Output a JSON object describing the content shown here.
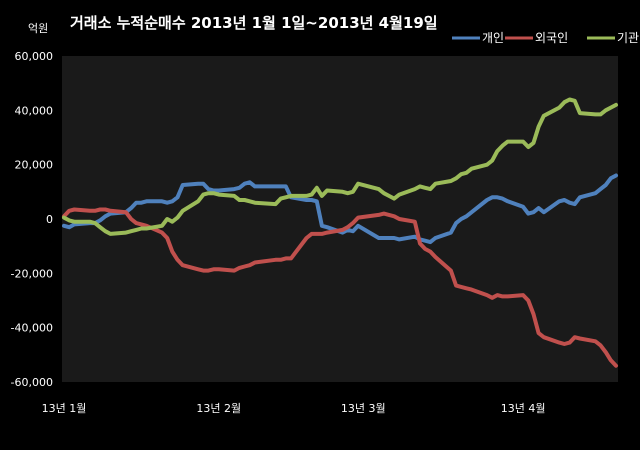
{
  "chart_data": {
    "type": "line",
    "title": "거래소  누적순매수 2013년 1월 1일~2013년 4월19일",
    "ylabel": "억원",
    "xlabel": "",
    "ylim": [
      -60000,
      60000
    ],
    "yticks": [
      -60000,
      -40000,
      -20000,
      0,
      20000,
      40000,
      60000
    ],
    "ytick_labels": [
      "-60,000",
      "-40,000",
      "-20,000",
      "0",
      "20,000",
      "40,000",
      "60,000"
    ],
    "x_range": [
      "2013-01-02",
      "2013-04-19"
    ],
    "xticks": [
      {
        "date": "2013-01-02",
        "label": "13년 1월"
      },
      {
        "date": "2013-02-01",
        "label": "13년 2월"
      },
      {
        "date": "2013-03-01",
        "label": "13년 3월"
      },
      {
        "date": "2013-04-01",
        "label": "13년 4월"
      }
    ],
    "grid": false,
    "legend_position": "top-right",
    "series": [
      {
        "name": "개인",
        "color": "#4F81BD",
        "points": [
          [
            "2013-01-02",
            -2500
          ],
          [
            "2013-01-03",
            -3000
          ],
          [
            "2013-01-04",
            -2000
          ],
          [
            "2013-01-07",
            -1500
          ],
          [
            "2013-01-08",
            -1500
          ],
          [
            "2013-01-09",
            -500
          ],
          [
            "2013-01-10",
            1000
          ],
          [
            "2013-01-11",
            2000
          ],
          [
            "2013-01-14",
            2500
          ],
          [
            "2013-01-15",
            4000
          ],
          [
            "2013-01-16",
            6000
          ],
          [
            "2013-01-17",
            6000
          ],
          [
            "2013-01-18",
            6500
          ],
          [
            "2013-01-21",
            6500
          ],
          [
            "2013-01-22",
            6000
          ],
          [
            "2013-01-23",
            6500
          ],
          [
            "2013-01-24",
            8000
          ],
          [
            "2013-01-25",
            12500
          ],
          [
            "2013-01-28",
            13000
          ],
          [
            "2013-01-29",
            13000
          ],
          [
            "2013-01-30",
            11000
          ],
          [
            "2013-01-31",
            10500
          ],
          [
            "2013-02-01",
            10500
          ],
          [
            "2013-02-04",
            11000
          ],
          [
            "2013-02-05",
            11500
          ],
          [
            "2013-02-06",
            13000
          ],
          [
            "2013-02-07",
            13500
          ],
          [
            "2013-02-08",
            12000
          ],
          [
            "2013-02-12",
            12000
          ],
          [
            "2013-02-13",
            12000
          ],
          [
            "2013-02-14",
            12000
          ],
          [
            "2013-02-15",
            8000
          ],
          [
            "2013-02-18",
            7000
          ],
          [
            "2013-02-19",
            7000
          ],
          [
            "2013-02-20",
            6500
          ],
          [
            "2013-02-21",
            -2500
          ],
          [
            "2013-02-22",
            -3000
          ],
          [
            "2013-02-25",
            -5000
          ],
          [
            "2013-02-26",
            -4000
          ],
          [
            "2013-02-27",
            -4500
          ],
          [
            "2013-02-28",
            -2500
          ],
          [
            "2013-03-04",
            -7000
          ],
          [
            "2013-03-05",
            -7000
          ],
          [
            "2013-03-06",
            -7000
          ],
          [
            "2013-03-07",
            -7000
          ],
          [
            "2013-03-08",
            -7500
          ],
          [
            "2013-03-11",
            -6500
          ],
          [
            "2013-03-12",
            -7500
          ],
          [
            "2013-03-13",
            -8000
          ],
          [
            "2013-03-14",
            -8500
          ],
          [
            "2013-03-15",
            -7000
          ],
          [
            "2013-03-18",
            -5000
          ],
          [
            "2013-03-19",
            -1500
          ],
          [
            "2013-03-20",
            0
          ],
          [
            "2013-03-21",
            1000
          ],
          [
            "2013-03-22",
            2500
          ],
          [
            "2013-03-25",
            7000
          ],
          [
            "2013-03-26",
            8000
          ],
          [
            "2013-03-27",
            8000
          ],
          [
            "2013-03-28",
            7500
          ],
          [
            "2013-03-29",
            6500
          ],
          [
            "2013-04-01",
            4500
          ],
          [
            "2013-04-02",
            2000
          ],
          [
            "2013-04-03",
            2500
          ],
          [
            "2013-04-04",
            4000
          ],
          [
            "2013-04-05",
            2500
          ],
          [
            "2013-04-08",
            6500
          ],
          [
            "2013-04-09",
            7000
          ],
          [
            "2013-04-10",
            6000
          ],
          [
            "2013-04-11",
            5500
          ],
          [
            "2013-04-12",
            8000
          ],
          [
            "2013-04-15",
            9500
          ],
          [
            "2013-04-16",
            11000
          ],
          [
            "2013-04-17",
            12500
          ],
          [
            "2013-04-18",
            15000
          ],
          [
            "2013-04-19",
            16000
          ]
        ]
      },
      {
        "name": "외국인",
        "color": "#C0504D",
        "points": [
          [
            "2013-01-02",
            1000
          ],
          [
            "2013-01-03",
            3000
          ],
          [
            "2013-01-04",
            3500
          ],
          [
            "2013-01-07",
            3000
          ],
          [
            "2013-01-08",
            3000
          ],
          [
            "2013-01-09",
            3500
          ],
          [
            "2013-01-10",
            3500
          ],
          [
            "2013-01-11",
            3000
          ],
          [
            "2013-01-14",
            2500
          ],
          [
            "2013-01-15",
            0
          ],
          [
            "2013-01-16",
            -1500
          ],
          [
            "2013-01-17",
            -2000
          ],
          [
            "2013-01-18",
            -2500
          ],
          [
            "2013-01-21",
            -5000
          ],
          [
            "2013-01-22",
            -7000
          ],
          [
            "2013-01-23",
            -12000
          ],
          [
            "2013-01-24",
            -15000
          ],
          [
            "2013-01-25",
            -17000
          ],
          [
            "2013-01-28",
            -18500
          ],
          [
            "2013-01-29",
            -19000
          ],
          [
            "2013-01-30",
            -19000
          ],
          [
            "2013-01-31",
            -18500
          ],
          [
            "2013-02-01",
            -18500
          ],
          [
            "2013-02-04",
            -19000
          ],
          [
            "2013-02-05",
            -18000
          ],
          [
            "2013-02-06",
            -17500
          ],
          [
            "2013-02-07",
            -17000
          ],
          [
            "2013-02-08",
            -16000
          ],
          [
            "2013-02-12",
            -15000
          ],
          [
            "2013-02-13",
            -15000
          ],
          [
            "2013-02-14",
            -14500
          ],
          [
            "2013-02-15",
            -14500
          ],
          [
            "2013-02-18",
            -7000
          ],
          [
            "2013-02-19",
            -5500
          ],
          [
            "2013-02-20",
            -5500
          ],
          [
            "2013-02-21",
            -5500
          ],
          [
            "2013-02-22",
            -5000
          ],
          [
            "2013-02-25",
            -4000
          ],
          [
            "2013-02-26",
            -3000
          ],
          [
            "2013-02-27",
            -1500
          ],
          [
            "2013-02-28",
            500
          ],
          [
            "2013-03-04",
            1500
          ],
          [
            "2013-03-05",
            2000
          ],
          [
            "2013-03-06",
            1500
          ],
          [
            "2013-03-07",
            1000
          ],
          [
            "2013-03-08",
            0
          ],
          [
            "2013-03-11",
            -1000
          ],
          [
            "2013-03-12",
            -9000
          ],
          [
            "2013-03-13",
            -11000
          ],
          [
            "2013-03-14",
            -12000
          ],
          [
            "2013-03-15",
            -14000
          ],
          [
            "2013-03-18",
            -19000
          ],
          [
            "2013-03-19",
            -24500
          ],
          [
            "2013-03-20",
            -25000
          ],
          [
            "2013-03-21",
            -25500
          ],
          [
            "2013-03-22",
            -26000
          ],
          [
            "2013-03-25",
            -28000
          ],
          [
            "2013-03-26",
            -29000
          ],
          [
            "2013-03-27",
            -28000
          ],
          [
            "2013-03-28",
            -28500
          ],
          [
            "2013-03-29",
            -28500
          ],
          [
            "2013-04-01",
            -28000
          ],
          [
            "2013-04-02",
            -30000
          ],
          [
            "2013-04-03",
            -35000
          ],
          [
            "2013-04-04",
            -42000
          ],
          [
            "2013-04-05",
            -43500
          ],
          [
            "2013-04-08",
            -45500
          ],
          [
            "2013-04-09",
            -46000
          ],
          [
            "2013-04-10",
            -45500
          ],
          [
            "2013-04-11",
            -43500
          ],
          [
            "2013-04-12",
            -44000
          ],
          [
            "2013-04-15",
            -45000
          ],
          [
            "2013-04-16",
            -46500
          ],
          [
            "2013-04-17",
            -49000
          ],
          [
            "2013-04-18",
            -52000
          ],
          [
            "2013-04-19",
            -54000
          ]
        ]
      },
      {
        "name": "기관",
        "color": "#9BBB59",
        "points": [
          [
            "2013-01-02",
            500
          ],
          [
            "2013-01-03",
            -500
          ],
          [
            "2013-01-04",
            -1000
          ],
          [
            "2013-01-07",
            -1000
          ],
          [
            "2013-01-08",
            -1500
          ],
          [
            "2013-01-09",
            -3000
          ],
          [
            "2013-01-10",
            -4500
          ],
          [
            "2013-01-11",
            -5500
          ],
          [
            "2013-01-14",
            -5000
          ],
          [
            "2013-01-15",
            -4500
          ],
          [
            "2013-01-16",
            -4000
          ],
          [
            "2013-01-17",
            -3500
          ],
          [
            "2013-01-18",
            -3500
          ],
          [
            "2013-01-21",
            -2500
          ],
          [
            "2013-01-22",
            0
          ],
          [
            "2013-01-23",
            -1000
          ],
          [
            "2013-01-24",
            500
          ],
          [
            "2013-01-25",
            3000
          ],
          [
            "2013-01-28",
            6500
          ],
          [
            "2013-01-29",
            9000
          ],
          [
            "2013-01-30",
            9500
          ],
          [
            "2013-01-31",
            9500
          ],
          [
            "2013-02-01",
            9000
          ],
          [
            "2013-02-04",
            8500
          ],
          [
            "2013-02-05",
            7000
          ],
          [
            "2013-02-06",
            7000
          ],
          [
            "2013-02-07",
            6500
          ],
          [
            "2013-02-08",
            6000
          ],
          [
            "2013-02-12",
            5500
          ],
          [
            "2013-02-13",
            7500
          ],
          [
            "2013-02-14",
            8000
          ],
          [
            "2013-02-15",
            8500
          ],
          [
            "2013-02-18",
            8500
          ],
          [
            "2013-02-19",
            9000
          ],
          [
            "2013-02-20",
            11500
          ],
          [
            "2013-02-21",
            8500
          ],
          [
            "2013-02-22",
            10500
          ],
          [
            "2013-02-25",
            10000
          ],
          [
            "2013-02-26",
            9500
          ],
          [
            "2013-02-27",
            10000
          ],
          [
            "2013-02-28",
            13000
          ],
          [
            "2013-03-04",
            11000
          ],
          [
            "2013-03-05",
            9500
          ],
          [
            "2013-03-06",
            8500
          ],
          [
            "2013-03-07",
            7500
          ],
          [
            "2013-03-08",
            9000
          ],
          [
            "2013-03-11",
            11000
          ],
          [
            "2013-03-12",
            12000
          ],
          [
            "2013-03-13",
            11500
          ],
          [
            "2013-03-14",
            11000
          ],
          [
            "2013-03-15",
            13000
          ],
          [
            "2013-03-18",
            14000
          ],
          [
            "2013-03-19",
            15000
          ],
          [
            "2013-03-20",
            16500
          ],
          [
            "2013-03-21",
            17000
          ],
          [
            "2013-03-22",
            18500
          ],
          [
            "2013-03-25",
            20000
          ],
          [
            "2013-03-26",
            21500
          ],
          [
            "2013-03-27",
            25000
          ],
          [
            "2013-03-28",
            27000
          ],
          [
            "2013-03-29",
            28500
          ],
          [
            "2013-04-01",
            28500
          ],
          [
            "2013-04-02",
            26500
          ],
          [
            "2013-04-03",
            28000
          ],
          [
            "2013-04-04",
            34000
          ],
          [
            "2013-04-05",
            38000
          ],
          [
            "2013-04-08",
            41000
          ],
          [
            "2013-04-09",
            43000
          ],
          [
            "2013-04-10",
            44000
          ],
          [
            "2013-04-11",
            43500
          ],
          [
            "2013-04-12",
            39000
          ],
          [
            "2013-04-15",
            38500
          ],
          [
            "2013-04-16",
            38500
          ],
          [
            "2013-04-17",
            40000
          ],
          [
            "2013-04-18",
            41000
          ],
          [
            "2013-04-19",
            42000
          ]
        ]
      }
    ]
  }
}
